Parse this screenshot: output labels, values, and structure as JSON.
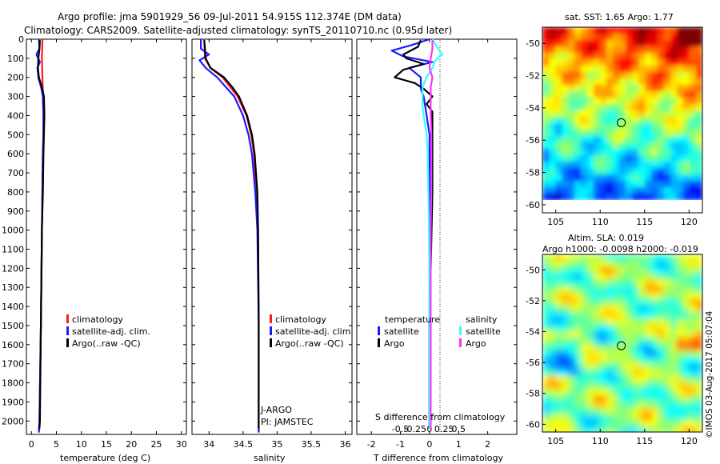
{
  "header": {
    "line1": "Argo profile: jma 5901929_56 09-Jul-2011 54.915S 112.374E (DM data)",
    "line2": "Climatology: CARS2009. Satellite-adjusted climatology: synTS_20110710.nc (0.95d later)"
  },
  "colors": {
    "climatology": "#ff1a1a",
    "satellite": "#1a1aff",
    "argo": "#000000",
    "sat_salinity": "#33ffff",
    "argo_salinity": "#ff33ff"
  },
  "chart_data": [
    {
      "type": "line",
      "name": "temperature",
      "xlabel": "temperature (deg C)",
      "ylabel": "",
      "xlim": [
        -1,
        31
      ],
      "ylim": [
        0,
        2070
      ],
      "x_ticks": [
        "0",
        "5",
        "10",
        "15",
        "20",
        "25",
        "30"
      ],
      "x_tick_values": [
        0,
        5,
        10,
        15,
        20,
        25,
        30
      ],
      "y_ticks": [
        "0",
        "100",
        "200",
        "300",
        "400",
        "500",
        "600",
        "700",
        "800",
        "900",
        "1000",
        "1100",
        "1200",
        "1300",
        "1400",
        "1500",
        "1600",
        "1700",
        "1800",
        "1900",
        "2000"
      ],
      "y_tick_values": [
        0,
        100,
        200,
        300,
        400,
        500,
        600,
        700,
        800,
        900,
        1000,
        1100,
        1200,
        1300,
        1400,
        1500,
        1600,
        1700,
        1800,
        1900,
        2000
      ],
      "legend": [
        "climatology",
        "satellite-adj. clim.",
        "Argo(..raw -QC)"
      ],
      "series": [
        {
          "name": "climatology",
          "color": "#ff1a1a",
          "depth": [
            0,
            100,
            200,
            300,
            400,
            500,
            600,
            800,
            1000,
            1500,
            2000,
            2060
          ],
          "values": [
            2.2,
            2.1,
            2.2,
            2.3,
            2.4,
            2.4,
            2.3,
            2.2,
            2.1,
            1.9,
            1.6,
            1.5
          ]
        },
        {
          "name": "satellite-adj. clim.",
          "color": "#1a1aff",
          "depth": [
            0,
            50,
            80,
            120,
            150,
            200,
            260,
            300,
            400,
            500,
            600,
            800,
            1000,
            1500,
            2000,
            2060
          ],
          "values": [
            1.5,
            1.6,
            1.0,
            1.7,
            1.2,
            1.4,
            2.0,
            2.3,
            2.4,
            2.4,
            2.3,
            2.2,
            2.1,
            1.9,
            1.6,
            1.5
          ]
        },
        {
          "name": "Argo(..raw -QC)",
          "color": "#000000",
          "depth": [
            5,
            50,
            100,
            150,
            200,
            250,
            300,
            400,
            500,
            600,
            800,
            1000,
            1500,
            2000,
            2040
          ],
          "values": [
            1.7,
            1.6,
            1.4,
            1.3,
            1.5,
            2.1,
            2.5,
            2.6,
            2.5,
            2.4,
            2.3,
            2.1,
            1.9,
            1.7,
            1.6
          ]
        }
      ]
    },
    {
      "type": "line",
      "name": "salinity",
      "xlabel": "salinity",
      "ylabel": "",
      "xlim": [
        33.75,
        36.1
      ],
      "ylim": [
        0,
        2070
      ],
      "x_ticks": [
        "34",
        "34.5",
        "35",
        "35.5",
        "36"
      ],
      "x_tick_values": [
        34,
        34.5,
        35,
        35.5,
        36
      ],
      "legend": [
        "climatology",
        "satellite-adj. clim.",
        "Argo(..raw -QC)"
      ],
      "annotations": [
        "J-ARGO",
        "PI: JAMSTEC"
      ],
      "series": [
        {
          "name": "climatology",
          "color": "#ff1a1a",
          "depth": [
            0,
            100,
            150,
            200,
            300,
            400,
            500,
            600,
            800,
            1000,
            1500,
            2000,
            2060
          ],
          "values": [
            33.93,
            33.94,
            34.02,
            34.2,
            34.42,
            34.55,
            34.62,
            34.66,
            34.7,
            34.72,
            34.73,
            34.73,
            34.73
          ]
        },
        {
          "name": "satellite-adj. clim.",
          "color": "#1a1aff",
          "depth": [
            0,
            50,
            80,
            110,
            150,
            200,
            300,
            400,
            500,
            600,
            800,
            1000,
            1500,
            2000,
            2060
          ],
          "values": [
            33.88,
            33.88,
            34.0,
            33.86,
            33.95,
            34.12,
            34.37,
            34.5,
            34.58,
            34.63,
            34.68,
            34.71,
            34.73,
            34.73,
            34.73
          ]
        },
        {
          "name": "Argo(..raw -QC)",
          "color": "#000000",
          "depth": [
            5,
            50,
            100,
            150,
            200,
            250,
            300,
            400,
            500,
            600,
            800,
            1000,
            1500,
            2000,
            2040
          ],
          "values": [
            33.93,
            33.94,
            33.95,
            34.02,
            34.22,
            34.34,
            34.44,
            34.56,
            34.63,
            34.67,
            34.71,
            34.72,
            34.73,
            34.73,
            34.73
          ]
        }
      ]
    },
    {
      "type": "line",
      "name": "difference",
      "xlabel": "T difference from climatology",
      "xlabel_top": "S difference from climatology",
      "xlim": [
        -2.5,
        3.0
      ],
      "ylim": [
        0,
        2070
      ],
      "x_ticks": [
        "-2",
        "-1",
        "0",
        "1",
        "2"
      ],
      "x_tick_values": [
        -2,
        -1,
        0,
        1,
        2
      ],
      "s_ticks": [
        "-0.5",
        "-0.25",
        "0",
        "0.25",
        "0.5"
      ],
      "s_tick_values": [
        -0.5,
        -0.25,
        0,
        0.25,
        0.5
      ],
      "legend_headers": [
        "temperature",
        "salinity"
      ],
      "legend": [
        "satellite",
        "Argo",
        "satellite",
        "Argo"
      ],
      "series": [
        {
          "name": "temperature satellite",
          "color": "#1a1aff",
          "depth": [
            0,
            30,
            60,
            90,
            120,
            150,
            200,
            260,
            300,
            400,
            500,
            800,
            1000,
            1500,
            2000,
            2040
          ],
          "values": [
            0.0,
            -0.6,
            -1.3,
            -0.9,
            0.1,
            -0.7,
            -0.3,
            -0.3,
            -0.2,
            -0.1,
            0.0,
            0.0,
            0.0,
            0.0,
            0.0,
            0.0
          ]
        },
        {
          "name": "temperature Argo",
          "color": "#000000",
          "depth": [
            5,
            40,
            80,
            100,
            130,
            160,
            200,
            230,
            260,
            300,
            340,
            380,
            420,
            500,
            800,
            1500,
            2000,
            2040
          ],
          "values": [
            -0.3,
            -0.4,
            -0.9,
            -0.8,
            -0.2,
            -0.9,
            -1.2,
            -0.5,
            -0.2,
            0.1,
            -0.1,
            0.1,
            0.1,
            0.1,
            0.1,
            0.0,
            0.0,
            0.0
          ]
        },
        {
          "name": "salinity satellite",
          "color": "#33ffff",
          "depth": [
            0,
            50,
            80,
            110,
            150,
            200,
            250,
            300,
            350,
            400,
            500,
            600,
            800,
            1000,
            1500,
            2000,
            2040
          ],
          "values": [
            0.05,
            0.15,
            0.22,
            0.1,
            0.05,
            -0.05,
            -0.12,
            -0.12,
            -0.12,
            -0.1,
            -0.05,
            -0.03,
            -0.02,
            -0.01,
            0.0,
            0.0,
            0.0
          ]
        },
        {
          "name": "salinity Argo",
          "color": "#ff33ff",
          "depth": [
            5,
            50,
            100,
            150,
            200,
            250,
            300,
            400,
            500,
            600,
            800,
            1000,
            1500,
            2000,
            2040
          ],
          "values": [
            0.05,
            0.05,
            0.02,
            0.0,
            0.05,
            0.02,
            0.02,
            0.02,
            0.03,
            0.03,
            0.03,
            0.02,
            0.02,
            0.02,
            0.02
          ]
        }
      ]
    },
    {
      "type": "heatmap",
      "name": "sst_map",
      "title": "sat. SST: 1.65 Argo: 1.77",
      "x_ticks": [
        "105",
        "110",
        "115",
        "120"
      ],
      "x_tick_values": [
        105,
        110,
        115,
        120
      ],
      "y_ticks": [
        "-50",
        "-52",
        "-54",
        "-56",
        "-58",
        "-60"
      ],
      "y_tick_values": [
        -50,
        -52,
        -54,
        -56,
        -58,
        -60
      ],
      "xlim": [
        103.5,
        121.5
      ],
      "ylim": [
        -60.5,
        -49.0
      ],
      "marker": [
        112.374,
        -54.915
      ]
    },
    {
      "type": "heatmap",
      "name": "sla_map",
      "title": "Altim. SLA: 0.019",
      "subtitle": "Argo h1000: -0.0098 h2000: -0.019",
      "x_ticks": [
        "105",
        "110",
        "115",
        "120"
      ],
      "x_tick_values": [
        105,
        110,
        115,
        120
      ],
      "y_ticks": [
        "-50",
        "-52",
        "-54",
        "-56",
        "-58",
        "-60"
      ],
      "y_tick_values": [
        -50,
        -52,
        -54,
        -56,
        -58,
        -60
      ],
      "xlim": [
        103.5,
        121.5
      ],
      "ylim": [
        -60.5,
        -49.0
      ],
      "marker": [
        112.374,
        -54.915
      ]
    }
  ],
  "credit": "©IMOS 03-Aug-2017 05:07:04"
}
